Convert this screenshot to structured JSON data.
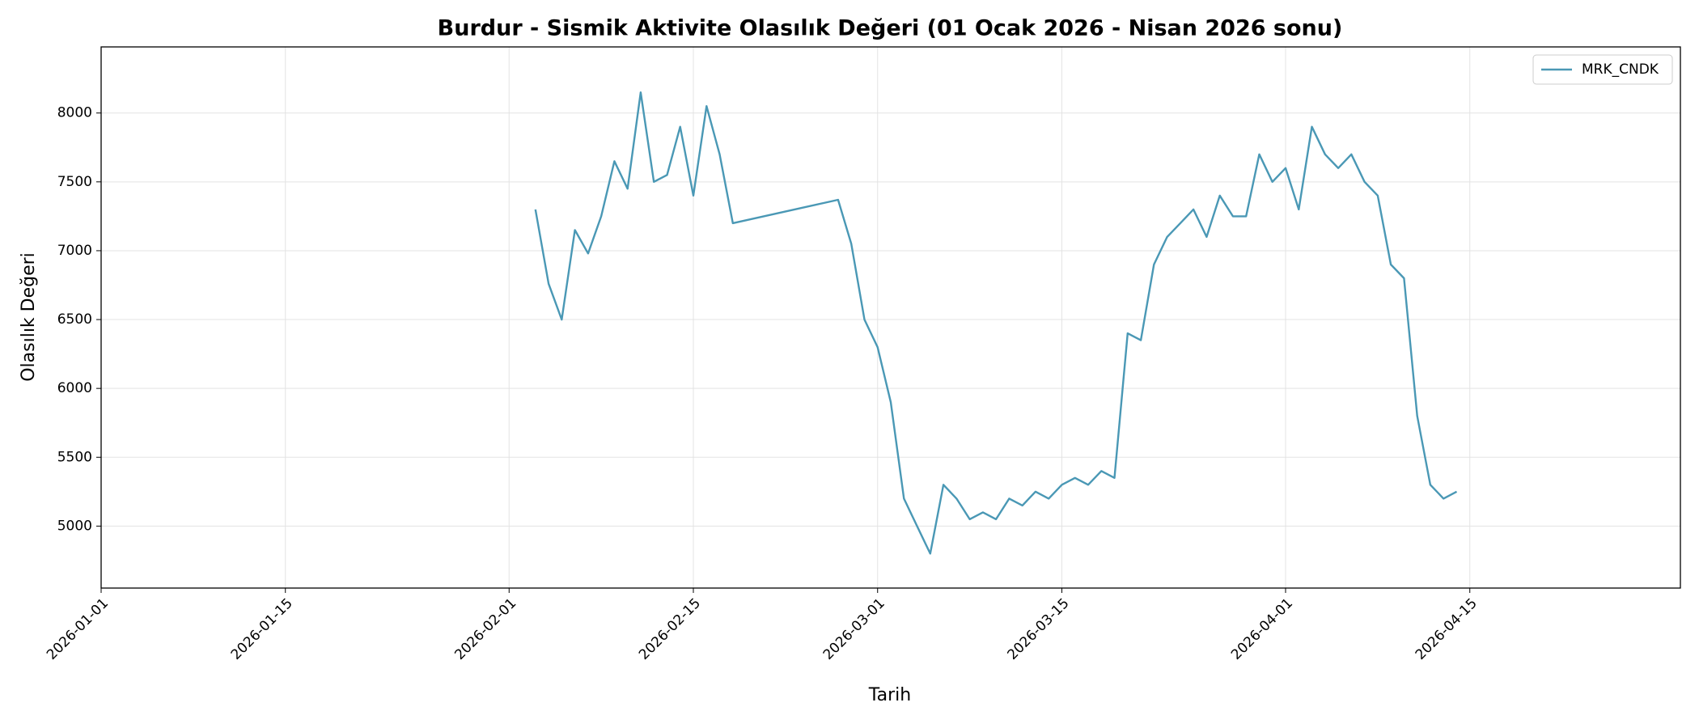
{
  "chart_data": {
    "type": "line",
    "title": "Burdur - Sismik Aktivite Olasılık Değeri (01 Ocak 2026 - Nisan 2026 sonu)",
    "xlabel": "Tarih",
    "ylabel": "Olasılık Değeri",
    "x": [
      "2026-02-03",
      "2026-02-04",
      "2026-02-05",
      "2026-02-06",
      "2026-02-07",
      "2026-02-08",
      "2026-02-09",
      "2026-02-10",
      "2026-02-11",
      "2026-02-12",
      "2026-02-13",
      "2026-02-14",
      "2026-02-15",
      "2026-02-16",
      "2026-02-17",
      "2026-02-18",
      "2026-02-26",
      "2026-02-27",
      "2026-02-28",
      "2026-03-01",
      "2026-03-02",
      "2026-03-03",
      "2026-03-04",
      "2026-03-05",
      "2026-03-06",
      "2026-03-07",
      "2026-03-08",
      "2026-03-09",
      "2026-03-10",
      "2026-03-11",
      "2026-03-12",
      "2026-03-13",
      "2026-03-14",
      "2026-03-15",
      "2026-03-16",
      "2026-03-17",
      "2026-03-18",
      "2026-03-19",
      "2026-03-20",
      "2026-03-21",
      "2026-03-22",
      "2026-03-23",
      "2026-03-24",
      "2026-03-25",
      "2026-03-26",
      "2026-03-27",
      "2026-03-28",
      "2026-03-29",
      "2026-03-30",
      "2026-03-31",
      "2026-04-01",
      "2026-04-02",
      "2026-04-03",
      "2026-04-04",
      "2026-04-05",
      "2026-04-06",
      "2026-04-07",
      "2026-04-08",
      "2026-04-09",
      "2026-04-10",
      "2026-04-11",
      "2026-04-12",
      "2026-04-13",
      "2026-04-14"
    ],
    "series": [
      {
        "name": "MRK_CNDK",
        "color": "#4a98b5",
        "values": [
          7300,
          6760,
          6500,
          7150,
          6980,
          7250,
          7650,
          7450,
          8150,
          7500,
          7550,
          7900,
          7400,
          8050,
          7700,
          7200,
          7370,
          7050,
          6500,
          6300,
          5900,
          5200,
          5000,
          4800,
          5300,
          5200,
          5050,
          5100,
          5050,
          5200,
          5150,
          5250,
          5200,
          5300,
          5350,
          5300,
          5400,
          5350,
          6400,
          6350,
          6900,
          7100,
          7200,
          7300,
          7100,
          7400,
          7250,
          7250,
          7700,
          7500,
          7600,
          7300,
          7900,
          7700,
          7600,
          7700,
          7500,
          7400,
          6900,
          6800,
          5800,
          5300,
          5200,
          5250
        ]
      }
    ],
    "xlim": [
      "2026-01-01",
      "2026-05-01"
    ],
    "xticks": [
      "2026-01-01",
      "2026-01-15",
      "2026-02-01",
      "2026-02-15",
      "2026-03-01",
      "2026-03-15",
      "2026-04-01",
      "2026-04-15"
    ],
    "ylim": [
      4550,
      8480
    ],
    "yticks": [
      5000,
      5500,
      6000,
      6500,
      7000,
      7500,
      8000
    ],
    "grid": true,
    "legend": "upper right"
  }
}
